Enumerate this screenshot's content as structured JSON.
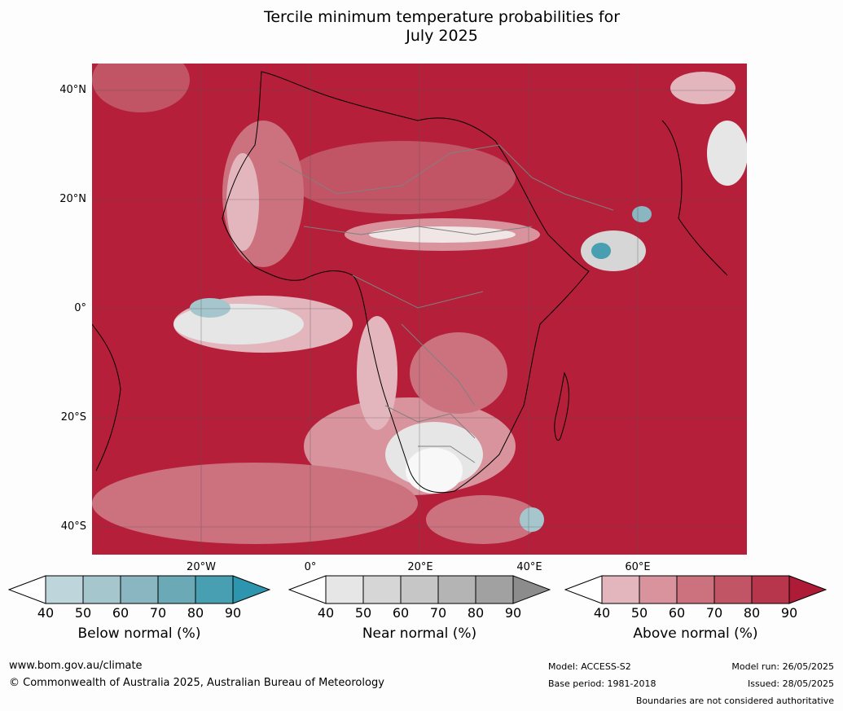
{
  "title_line1": "Tercile minimum temperature probabilities for",
  "title_line2": "July 2025",
  "lat_labels": [
    "40°N",
    "20°N",
    "0°",
    "20°S",
    "40°S"
  ],
  "lon_labels": [
    "20°W",
    "0°",
    "20°E",
    "40°E",
    "60°E"
  ],
  "colorbars": [
    {
      "label": "Below normal (%)",
      "ticks": [
        "40",
        "50",
        "60",
        "70",
        "80",
        "90"
      ],
      "colors": [
        "#bed5dc",
        "#a6c6cd",
        "#89b6c0",
        "#6aa9b5",
        "#479fb1",
        "#2d95ad"
      ]
    },
    {
      "label": "Near normal (%)",
      "ticks": [
        "40",
        "50",
        "60",
        "70",
        "80",
        "90"
      ],
      "colors": [
        "#e6e6e6",
        "#d6d6d6",
        "#c6c6c6",
        "#b4b4b4",
        "#a1a1a1",
        "#8c8c8c"
      ]
    },
    {
      "label": "Above normal (%)",
      "ticks": [
        "40",
        "50",
        "60",
        "70",
        "80",
        "90"
      ],
      "colors": [
        "#e3b6bd",
        "#d8939d",
        "#cc727f",
        "#c25565",
        "#b8364b",
        "#ae1b36"
      ]
    }
  ],
  "footer": {
    "website": "www.bom.gov.au/climate",
    "copyright": "© Commonwealth of Australia 2025, Australian Bureau of Meteorology",
    "model": "Model: ACCESS-S2",
    "base_period": "Base period: 1981-2018",
    "model_run": "Model run: 26/05/2025",
    "issued": "Issued: 28/05/2025",
    "boundaries": "Boundaries are not considered authoritative"
  }
}
